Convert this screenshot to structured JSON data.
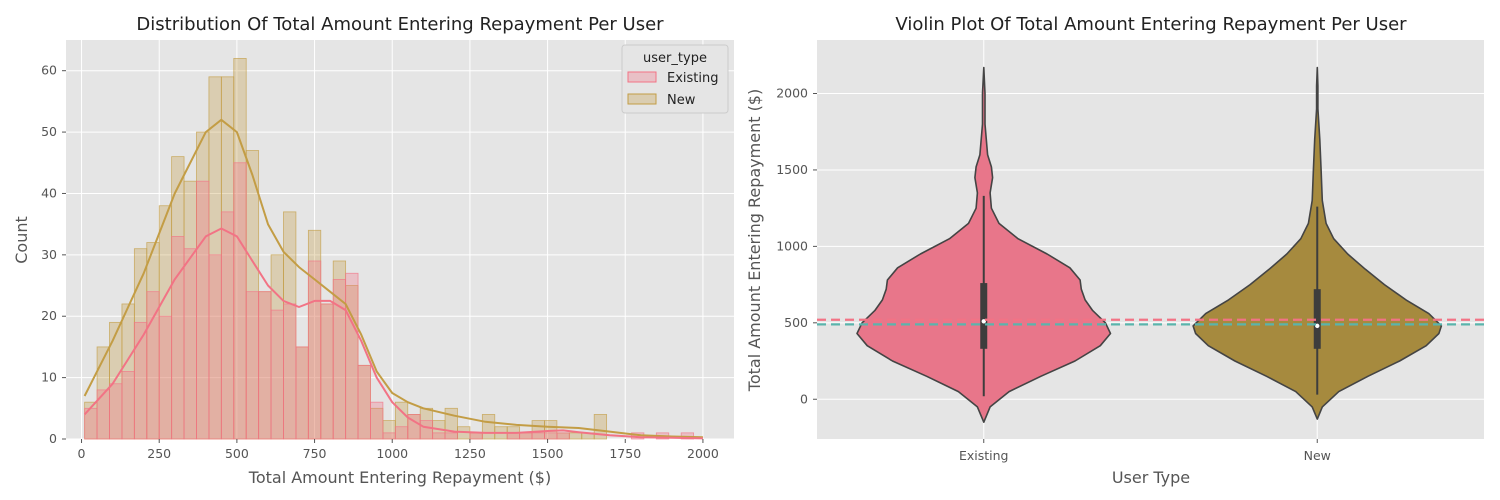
{
  "chart_data": [
    {
      "type": "histogram",
      "title": "Distribution Of Total Amount Entering Repayment Per User",
      "xlabel": "Total Amount Entering Repayment ($)",
      "ylabel": "Count",
      "xlim": [
        -50,
        2100
      ],
      "ylim": [
        0,
        65
      ],
      "xticks": [
        "0",
        "250",
        "500",
        "750",
        "1000",
        "1250",
        "1500",
        "1750",
        "2000"
      ],
      "yticks": [
        "0",
        "10",
        "20",
        "30",
        "40",
        "50",
        "60"
      ],
      "bin_edges": [
        10,
        50,
        90,
        130,
        170,
        210,
        250,
        290,
        330,
        370,
        410,
        450,
        490,
        530,
        570,
        610,
        650,
        690,
        730,
        770,
        810,
        850,
        890,
        930,
        970,
        1010,
        1050,
        1090,
        1130,
        1170,
        1210,
        1250,
        1290,
        1330,
        1370,
        1410,
        1450,
        1490,
        1530,
        1570,
        1610,
        1650,
        1690,
        1730,
        1770,
        1810,
        1850,
        1890,
        1930,
        1970,
        2010
      ],
      "legend": {
        "title": "user_type",
        "position": "upper right"
      },
      "grid": true,
      "series": [
        {
          "name": "Existing",
          "color": "#f27385",
          "values": [
            5,
            8,
            9,
            11,
            19,
            24,
            20,
            33,
            31,
            42,
            30,
            37,
            45,
            24,
            24,
            21,
            22,
            15,
            29,
            22,
            26,
            27,
            12,
            6,
            1,
            2,
            4,
            3,
            1,
            1,
            0,
            1,
            0,
            0,
            1,
            1,
            1,
            1,
            1,
            0,
            0,
            0,
            0,
            0,
            1,
            0,
            1,
            0,
            1,
            0
          ],
          "kde": [
            [
              10,
              4
            ],
            [
              100,
              9
            ],
            [
              200,
              17
            ],
            [
              300,
              26
            ],
            [
              400,
              33
            ],
            [
              450,
              34.3
            ],
            [
              500,
              33
            ],
            [
              550,
              29
            ],
            [
              600,
              25
            ],
            [
              650,
              22.5
            ],
            [
              700,
              21.5
            ],
            [
              750,
              22.5
            ],
            [
              800,
              22.5
            ],
            [
              850,
              21
            ],
            [
              900,
              16
            ],
            [
              950,
              10
            ],
            [
              1000,
              6
            ],
            [
              1050,
              3.5
            ],
            [
              1100,
              2
            ],
            [
              1200,
              1.2
            ],
            [
              1300,
              1
            ],
            [
              1400,
              1
            ],
            [
              1500,
              1.3
            ],
            [
              1550,
              1.4
            ],
            [
              1600,
              1.1
            ],
            [
              1700,
              0.6
            ],
            [
              1800,
              0.3
            ],
            [
              1900,
              0.2
            ],
            [
              2000,
              0.1
            ]
          ]
        },
        {
          "name": "New",
          "color": "#c39d45",
          "values": [
            6,
            15,
            19,
            22,
            31,
            32,
            38,
            46,
            42,
            50,
            59,
            59,
            62,
            47,
            24,
            30,
            37,
            15,
            34,
            22,
            29,
            25,
            12,
            5,
            3,
            6,
            4,
            5,
            3,
            5,
            2,
            1,
            4,
            2,
            2,
            1,
            3,
            3,
            1,
            1,
            1,
            4,
            0,
            0,
            0,
            0,
            0,
            0,
            0,
            0
          ],
          "kde": [
            [
              10,
              7
            ],
            [
              100,
              16
            ],
            [
              200,
              27
            ],
            [
              300,
              40
            ],
            [
              400,
              50
            ],
            [
              450,
              52
            ],
            [
              500,
              50
            ],
            [
              550,
              43
            ],
            [
              600,
              35
            ],
            [
              650,
              30.5
            ],
            [
              700,
              28
            ],
            [
              750,
              26
            ],
            [
              800,
              24
            ],
            [
              850,
              22
            ],
            [
              900,
              17
            ],
            [
              950,
              11
            ],
            [
              1000,
              7.5
            ],
            [
              1050,
              6
            ],
            [
              1100,
              5
            ],
            [
              1200,
              3.8
            ],
            [
              1300,
              2.8
            ],
            [
              1400,
              2.3
            ],
            [
              1500,
              2
            ],
            [
              1600,
              1.8
            ],
            [
              1700,
              1.2
            ],
            [
              1800,
              0.6
            ],
            [
              1900,
              0.4
            ],
            [
              2000,
              0.3
            ]
          ]
        }
      ]
    },
    {
      "type": "violin",
      "title": "Violin Plot Of Total Amount Entering Repayment Per User",
      "xlabel": "User Type",
      "ylabel": "Total Amount Entering Repayment ($)",
      "categories": [
        "Existing",
        "New"
      ],
      "ylim": [
        -260,
        2350
      ],
      "yticks": [
        "0",
        "500",
        "1000",
        "1500",
        "2000"
      ],
      "grid": true,
      "reference_lines": [
        {
          "y": 520,
          "color": "#f27385",
          "style": "dashed"
        },
        {
          "y": 490,
          "color": "#5ab4ac",
          "style": "dashed"
        }
      ],
      "violins": [
        {
          "category": "Existing",
          "color": "#e8768a",
          "y_min": -150,
          "y_max": 2170,
          "whisker": [
            20,
            1330
          ],
          "quartiles": [
            330,
            760
          ],
          "median": 510,
          "profile": [
            [
              -150,
              0
            ],
            [
              -50,
              0.05
            ],
            [
              50,
              0.2
            ],
            [
              150,
              0.45
            ],
            [
              250,
              0.72
            ],
            [
              350,
              0.92
            ],
            [
              430,
              1.0
            ],
            [
              500,
              0.96
            ],
            [
              580,
              0.86
            ],
            [
              650,
              0.8
            ],
            [
              720,
              0.77
            ],
            [
              780,
              0.76
            ],
            [
              860,
              0.68
            ],
            [
              950,
              0.5
            ],
            [
              1050,
              0.27
            ],
            [
              1150,
              0.12
            ],
            [
              1250,
              0.06
            ],
            [
              1350,
              0.05
            ],
            [
              1450,
              0.07
            ],
            [
              1520,
              0.06
            ],
            [
              1600,
              0.03
            ],
            [
              1800,
              0.01
            ],
            [
              2000,
              0.01
            ],
            [
              2170,
              0
            ]
          ]
        },
        {
          "category": "New",
          "color": "#a68a3e",
          "y_min": -130,
          "y_max": 2170,
          "whisker": [
            30,
            1260
          ],
          "quartiles": [
            330,
            720
          ],
          "median": 480,
          "profile": [
            [
              -130,
              0
            ],
            [
              -50,
              0.04
            ],
            [
              50,
              0.17
            ],
            [
              150,
              0.4
            ],
            [
              250,
              0.65
            ],
            [
              350,
              0.86
            ],
            [
              430,
              0.96
            ],
            [
              480,
              0.98
            ],
            [
              560,
              0.88
            ],
            [
              650,
              0.7
            ],
            [
              750,
              0.53
            ],
            [
              850,
              0.38
            ],
            [
              950,
              0.24
            ],
            [
              1050,
              0.13
            ],
            [
              1150,
              0.07
            ],
            [
              1300,
              0.04
            ],
            [
              1500,
              0.03
            ],
            [
              1700,
              0.02
            ],
            [
              1900,
              0.005
            ],
            [
              2050,
              0.005
            ],
            [
              2170,
              0
            ]
          ]
        }
      ]
    }
  ]
}
